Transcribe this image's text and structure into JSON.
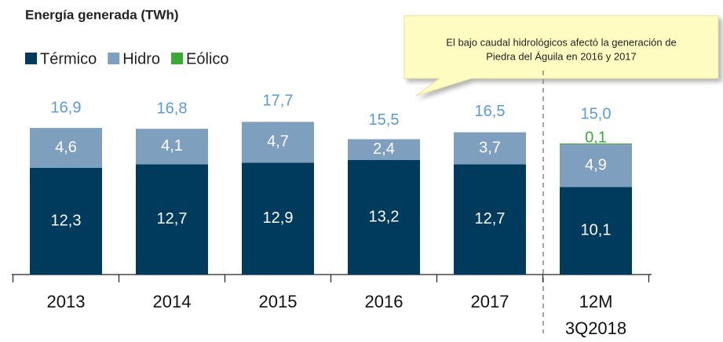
{
  "chart_data": {
    "type": "stacked_bar",
    "title": "Energía generada (TWh)",
    "annotation": [
      "El bajo caudal hidrológicos afectó la generación de",
      "Piedra del Águila en 2016 y 2017"
    ],
    "categories": [
      "2013",
      "2014",
      "2015",
      "2016",
      "2017",
      "12M 3Q2018"
    ],
    "series": [
      {
        "name": "Térmico",
        "color": "#003a5d",
        "values": [
          12.3,
          12.7,
          12.9,
          13.2,
          12.7,
          10.1
        ],
        "value_labels": [
          "12,3",
          "12,7",
          "12,9",
          "13,2",
          "12,7",
          "10,1"
        ]
      },
      {
        "name": "Hidro",
        "color": "#7f9fbf",
        "values": [
          4.6,
          4.1,
          4.7,
          2.4,
          3.7,
          4.9
        ],
        "value_labels": [
          "4,6",
          "4,1",
          "4,7",
          "2,4",
          "3,7",
          "4,9"
        ]
      },
      {
        "name": "Eólico",
        "color": "#3aaa35",
        "values": [
          null,
          null,
          null,
          null,
          null,
          0.1
        ],
        "value_labels": [
          null,
          null,
          null,
          null,
          null,
          "0,1"
        ]
      }
    ],
    "totals": [
      16.9,
      16.8,
      17.7,
      15.5,
      16.5,
      15.0
    ],
    "total_labels": [
      "16,9",
      "16,8",
      "17,7",
      "15,5",
      "16,5",
      "15,0"
    ],
    "total_color": "#5b9bd5"
  }
}
